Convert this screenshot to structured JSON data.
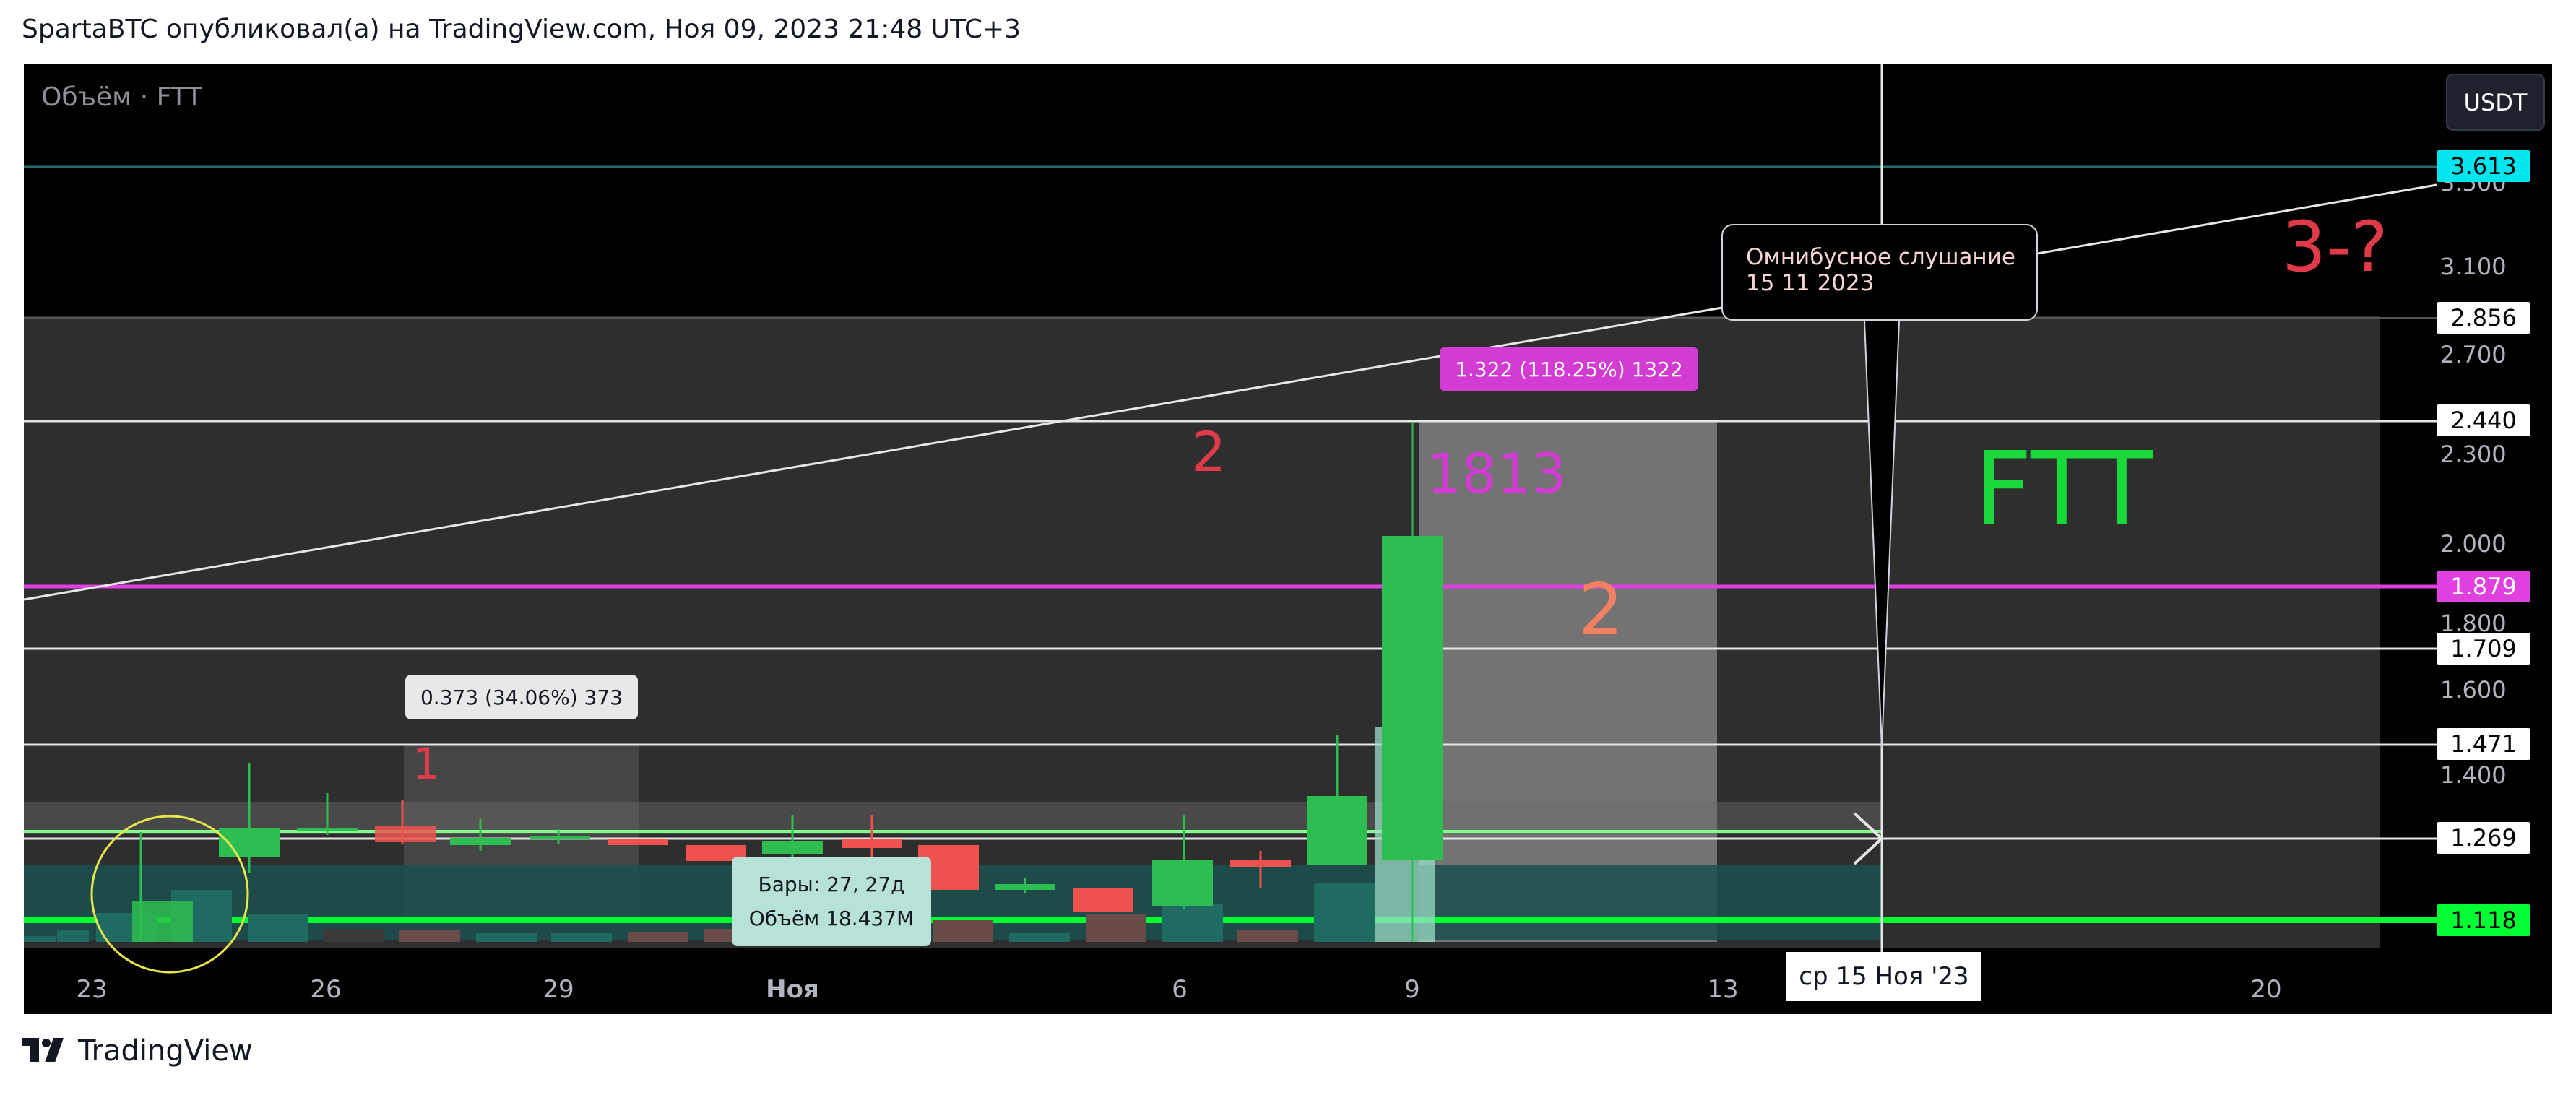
{
  "header": {
    "title": "SpartaBTC опубликовал(а) на TradingView.com, Ноя 09, 2023 21:48 UTC+3"
  },
  "chart": {
    "volume_label": "Объём · FTT",
    "currency_button": "USDT",
    "price_axis_ticks": [
      "3.500",
      "3.100",
      "2.700",
      "2.300",
      "2.000",
      "1.800",
      "1.600",
      "1.400"
    ],
    "price_labels": {
      "p3613": "3.613",
      "p2856": "2.856",
      "p2440": "2.440",
      "p1879": "1.879",
      "p1709": "1.709",
      "p1471": "1.471",
      "p1269": "1.269",
      "p1118": "1.118"
    },
    "time_axis": [
      "23",
      "26",
      "29",
      "Ноя",
      "6",
      "9",
      "13",
      "20"
    ],
    "crosshair_time": "ср 15 Ноя '23",
    "callout": {
      "line1": "Омнибусное слушание",
      "line2": "15 11 2023"
    },
    "measure_big": "1.322 (118.25%) 1322",
    "measure_small": "0.373 (34.06%) 373",
    "bars_label": "Бары: 27, 27д",
    "volume_value": "Объём 18.437M",
    "annotations": {
      "ftt": "FTT",
      "wave3": "3-?",
      "wave2_red": "2",
      "wave2_orange": "2",
      "wave1": "1",
      "num1813": "1813"
    },
    "colors": {
      "up": "#26a69a",
      "bright_up": "#2ebd50",
      "down": "#ef5350",
      "magenta": "#e040e0",
      "cyan": "#00e5ee",
      "green_line": "#00ff33"
    }
  },
  "footer": {
    "brand": "TradingView",
    "logo_icon": "tradingview-logo-icon"
  }
}
